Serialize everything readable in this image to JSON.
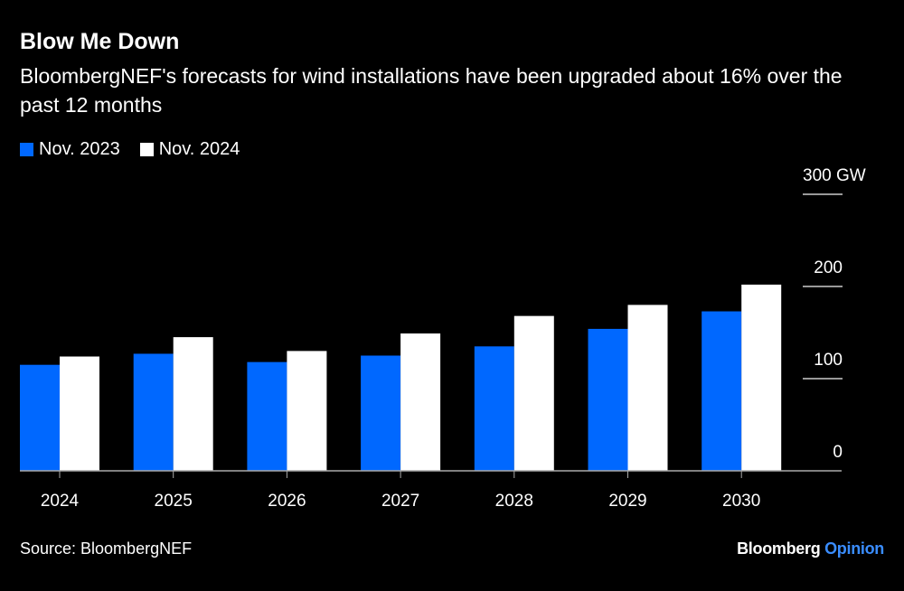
{
  "title": "Blow Me Down",
  "subtitle": "BloombergNEF's forecasts for wind installations have been upgraded about 16% over the past 12 months",
  "source": "Source: BloombergNEF",
  "logo": {
    "brand": "Bloomberg",
    "section": "Opinion"
  },
  "colors": {
    "nov2023": "#0068FF",
    "nov2024": "#FFFFFF",
    "background": "#000000"
  },
  "chart_data": {
    "type": "bar",
    "categories": [
      "2024",
      "2025",
      "2026",
      "2027",
      "2028",
      "2029",
      "2030"
    ],
    "series": [
      {
        "name": "Nov. 2023",
        "values": [
          115,
          127,
          118,
          125,
          135,
          154,
          173
        ]
      },
      {
        "name": "Nov. 2024",
        "values": [
          124,
          145,
          130,
          149,
          168,
          180,
          202
        ]
      }
    ],
    "ylim": [
      0,
      300
    ],
    "yticks": [
      0,
      100,
      200,
      300
    ],
    "ytick_labels": [
      "0",
      "100",
      "200",
      "300 GW"
    ],
    "ylabel": "",
    "xlabel": "",
    "legend_position": "top-left",
    "y_axis_side": "right",
    "grid": false
  }
}
